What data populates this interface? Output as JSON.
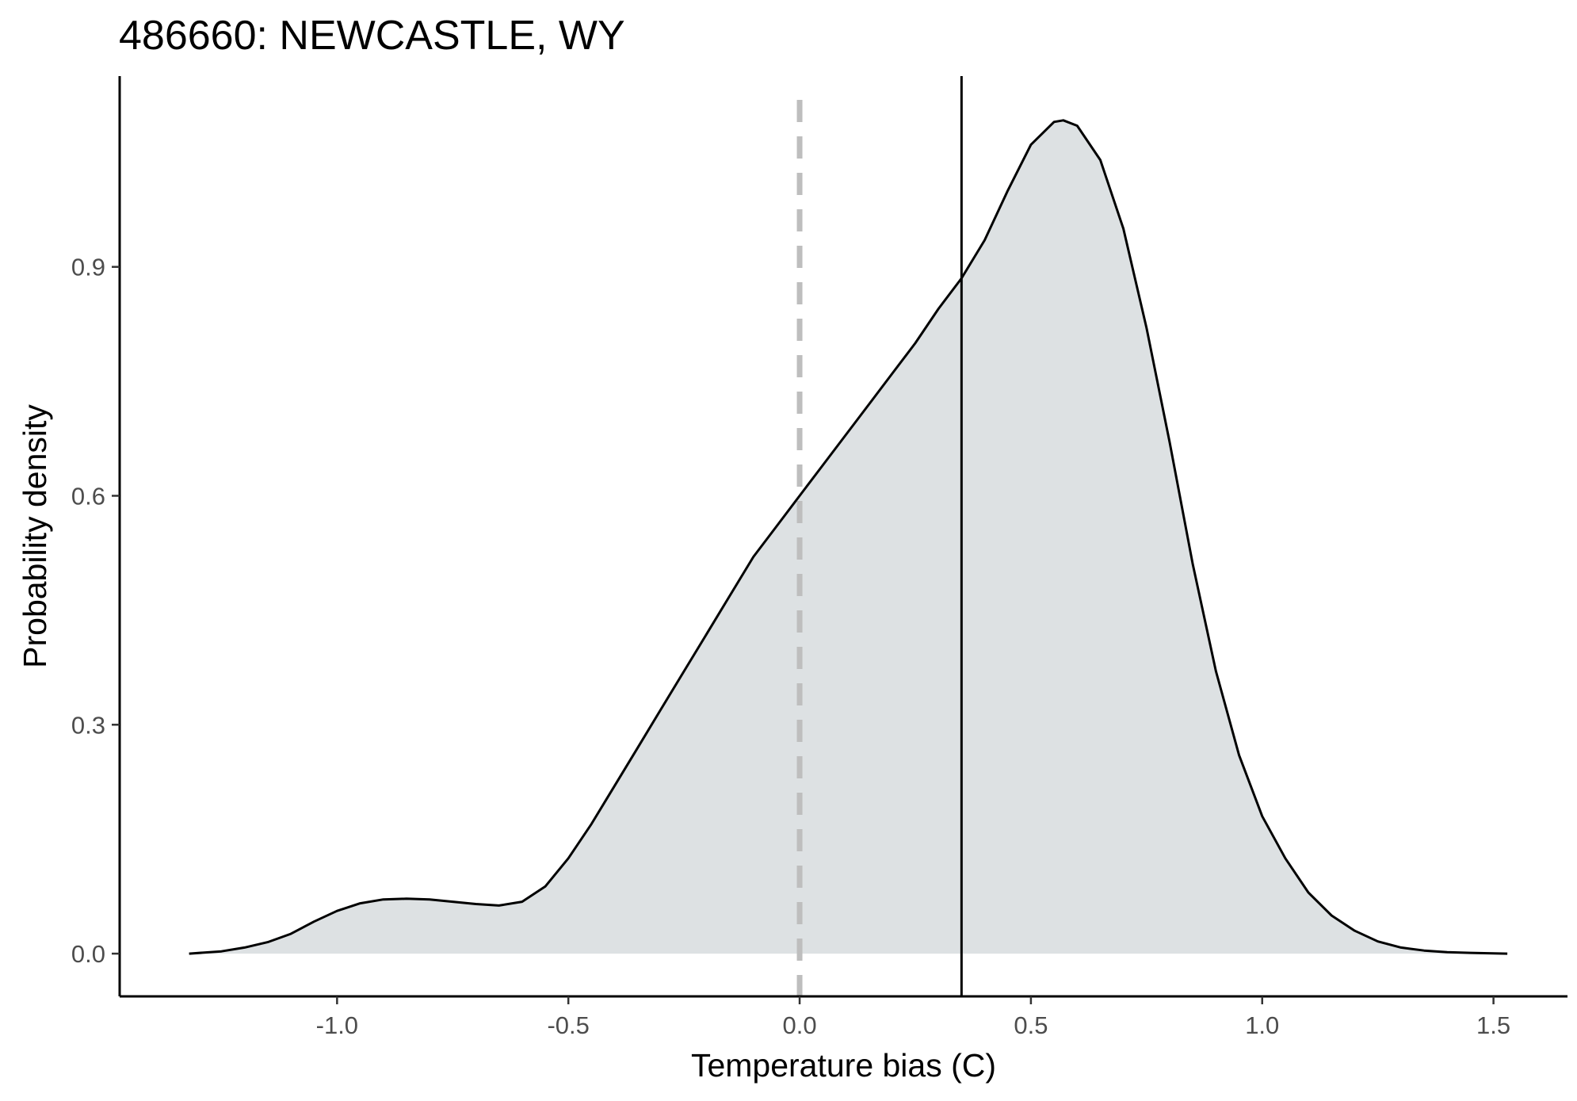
{
  "chart_data": {
    "type": "area",
    "title": "486660: NEWCASTLE, WY",
    "xlabel": "Temperature bias (C)",
    "ylabel": "Probability density",
    "xlim": [
      -1.47,
      1.66
    ],
    "ylim": [
      -0.056,
      1.15
    ],
    "x_ticks": [
      -1.0,
      -0.5,
      0.0,
      0.5,
      1.0,
      1.5
    ],
    "x_tick_labels": [
      "-1.0",
      "-0.5",
      "0.0",
      "0.5",
      "1.0",
      "1.5"
    ],
    "y_ticks": [
      0.0,
      0.3,
      0.6,
      0.9
    ],
    "y_tick_labels": [
      "0.0",
      "0.3",
      "0.6",
      "0.9"
    ],
    "grid": false,
    "fill_color": "#dde1e3",
    "line_color": "#000000",
    "reference_lines": [
      {
        "x": 0.0,
        "style": "dashed",
        "color": "#bebebe"
      },
      {
        "x": 0.35,
        "style": "solid",
        "color": "#000000"
      }
    ],
    "series": [
      {
        "x": [
          -1.32,
          -1.25,
          -1.2,
          -1.15,
          -1.1,
          -1.05,
          -1.0,
          -0.95,
          -0.9,
          -0.85,
          -0.8,
          -0.75,
          -0.7,
          -0.65,
          -0.6,
          -0.55,
          -0.5,
          -0.45,
          -0.4,
          -0.35,
          -0.3,
          -0.25,
          -0.2,
          -0.15,
          -0.1,
          -0.05,
          0.0,
          0.05,
          0.1,
          0.15,
          0.2,
          0.25,
          0.3,
          0.35,
          0.4,
          0.45,
          0.5,
          0.55,
          0.57,
          0.6,
          0.65,
          0.7,
          0.75,
          0.8,
          0.85,
          0.9,
          0.95,
          1.0,
          1.05,
          1.1,
          1.15,
          1.2,
          1.25,
          1.3,
          1.35,
          1.4,
          1.45,
          1.53
        ],
        "y": [
          0.0,
          0.003,
          0.008,
          0.015,
          0.026,
          0.042,
          0.056,
          0.066,
          0.071,
          0.072,
          0.071,
          0.068,
          0.065,
          0.063,
          0.068,
          0.088,
          0.125,
          0.17,
          0.22,
          0.27,
          0.32,
          0.37,
          0.42,
          0.47,
          0.52,
          0.56,
          0.6,
          0.64,
          0.68,
          0.72,
          0.76,
          0.8,
          0.845,
          0.885,
          0.935,
          1.0,
          1.06,
          1.09,
          1.092,
          1.085,
          1.04,
          0.95,
          0.82,
          0.67,
          0.51,
          0.37,
          0.26,
          0.18,
          0.125,
          0.08,
          0.05,
          0.03,
          0.016,
          0.008,
          0.004,
          0.002,
          0.001,
          0.0
        ]
      }
    ]
  }
}
